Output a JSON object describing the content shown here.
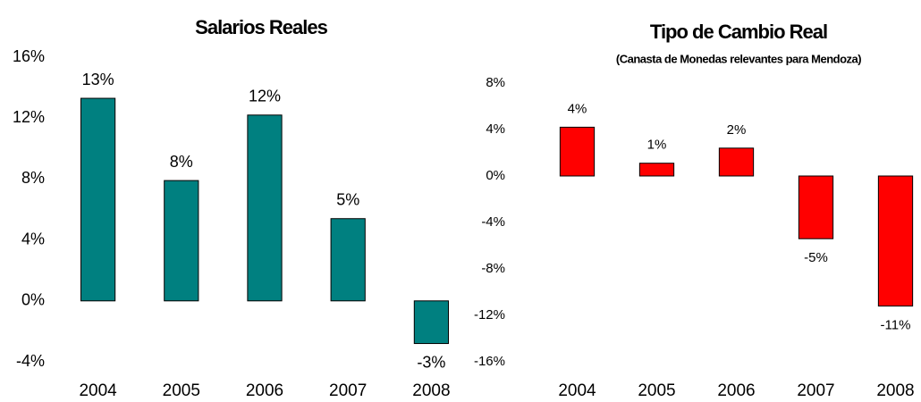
{
  "chart_data": [
    {
      "type": "bar",
      "title": "Salarios Reales",
      "categories": [
        "2004",
        "2005",
        "2006",
        "2007",
        "2008"
      ],
      "values": [
        13.3,
        7.9,
        12.2,
        5.4,
        -2.8
      ],
      "value_labels": [
        "13%",
        "8%",
        "12%",
        "5%",
        "-3%"
      ],
      "color": "#008080",
      "ylim": [
        -4,
        16
      ],
      "yticks": [
        {
          "value": -4,
          "label": "-4%"
        },
        {
          "value": 0,
          "label": "0%"
        },
        {
          "value": 4,
          "label": "4%"
        },
        {
          "value": 8,
          "label": "8%"
        },
        {
          "value": 12,
          "label": "12%"
        },
        {
          "value": 16,
          "label": "16%"
        }
      ],
      "grid": false
    },
    {
      "type": "bar",
      "title": "Tipo de Cambio Real",
      "subtitle": "(Canasta de Monedas relevantes para  Mendoza)",
      "categories": [
        "2004",
        "2005",
        "2006",
        "2007",
        "2008"
      ],
      "values": [
        4.2,
        1.1,
        2.4,
        -5.4,
        -11.2
      ],
      "value_labels": [
        "4%",
        "1%",
        "2%",
        "-5%",
        "-11%"
      ],
      "color": "#ff0000",
      "ylim": [
        -16,
        8
      ],
      "yticks": [
        {
          "value": -16,
          "label": "-16%"
        },
        {
          "value": -12,
          "label": "-12%"
        },
        {
          "value": -8,
          "label": "-8%"
        },
        {
          "value": -4,
          "label": "-4%"
        },
        {
          "value": 0,
          "label": "0%"
        },
        {
          "value": 4,
          "label": "4%"
        },
        {
          "value": 8,
          "label": "8%"
        }
      ],
      "grid": false
    }
  ]
}
